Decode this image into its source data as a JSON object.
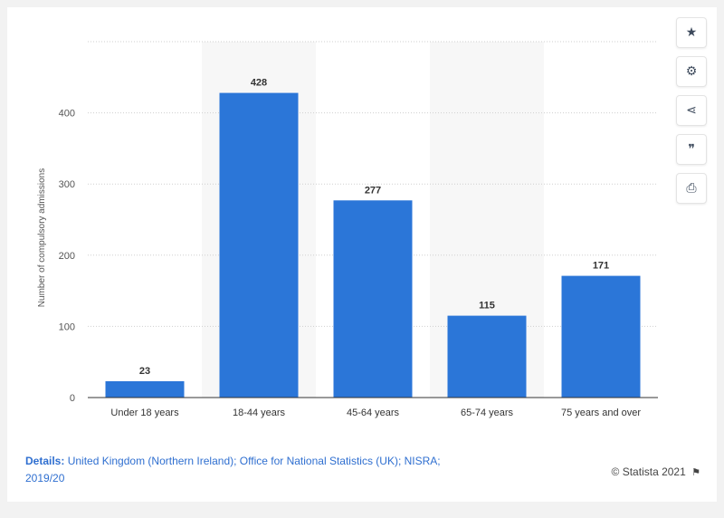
{
  "chart_data": {
    "type": "bar",
    "categories": [
      "Under 18 years",
      "18-44 years",
      "45-64 years",
      "65-74 years",
      "75 years and over"
    ],
    "values": [
      23,
      428,
      277,
      115,
      171
    ],
    "title": "",
    "xlabel": "",
    "ylabel": "Number of compulsory admissions",
    "ylim": [
      0,
      500
    ],
    "yticks": [
      0,
      100,
      200,
      300,
      400
    ],
    "bar_color": "#2b76d8",
    "grid": true,
    "data_labels": true,
    "alternating_column_shading": true
  },
  "toolbar": {
    "buttons": [
      {
        "name": "favorite-button",
        "icon": "star-icon",
        "glyph": "★"
      },
      {
        "name": "settings-button",
        "icon": "gear-icon",
        "glyph": "⚙"
      },
      {
        "name": "share-button",
        "icon": "share-icon",
        "glyph": "⋖"
      },
      {
        "name": "cite-button",
        "icon": "quote-icon",
        "glyph": "❞"
      },
      {
        "name": "print-button",
        "icon": "print-icon",
        "glyph": "⎙"
      }
    ]
  },
  "footer": {
    "details_label": "Details:",
    "details_text": " United Kingdom (Northern Ireland); Office for National Statistics (UK); NISRA; 2019/20",
    "credit": "© Statista 2021",
    "flag_icon": "flag-icon"
  }
}
